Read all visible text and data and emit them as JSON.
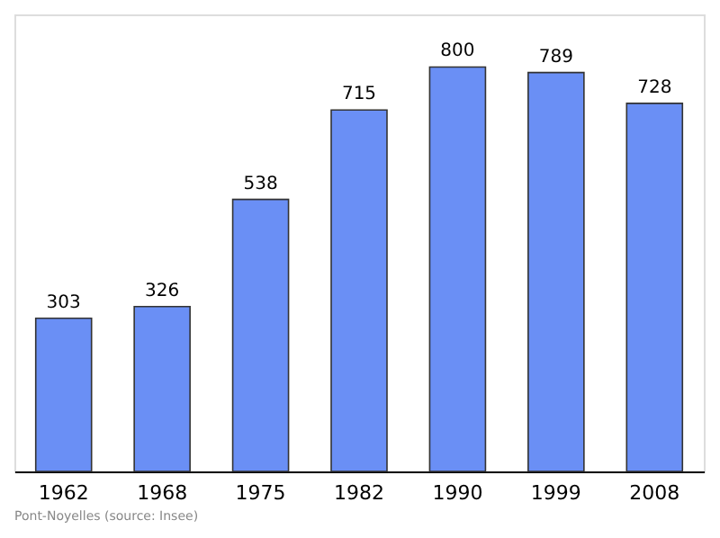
{
  "chart_data": {
    "type": "bar",
    "categories": [
      "1962",
      "1968",
      "1975",
      "1982",
      "1990",
      "1999",
      "2008"
    ],
    "values": [
      303,
      326,
      538,
      715,
      800,
      789,
      728
    ],
    "color": "#6a8ff5",
    "data_labels": true,
    "annotations": [
      "Pont-Noyelles",
      "(source: Insee)"
    ]
  }
}
